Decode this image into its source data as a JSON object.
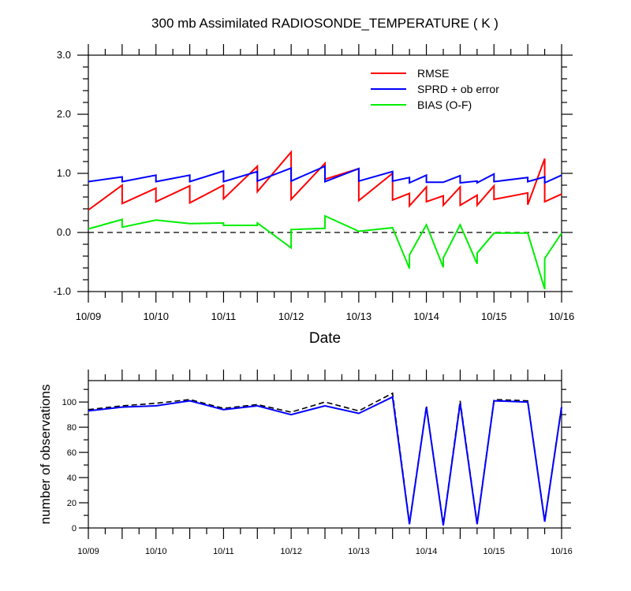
{
  "chart_data": [
    {
      "type": "line",
      "title": "300 mb Assimilated RADIOSONDE_TEMPERATURE ( K )",
      "xlabel": "Date",
      "ylabel": "",
      "xlim": [
        0,
        7
      ],
      "ylim": [
        -1.0,
        3.0
      ],
      "yticks": [
        "-1.0",
        "0.0",
        "1.0",
        "2.0",
        "3.0"
      ],
      "ytick_values": [
        -1,
        0,
        1,
        2,
        3
      ],
      "xticks": [
        "10/09",
        "10/10",
        "10/11",
        "10/12",
        "10/13",
        "10/14",
        "10/15",
        "10/16"
      ],
      "xtick_values": [
        0,
        1,
        2,
        3,
        4,
        5,
        6,
        7
      ],
      "zero_line": {
        "y": 0,
        "style": "dashed"
      },
      "legend": {
        "placement": "top-right"
      },
      "series": [
        {
          "name": "RMSE",
          "color": "#ff0000",
          "x": [
            0,
            0.5,
            0.5,
            1,
            1,
            1.5,
            1.5,
            2,
            2,
            2.5,
            2.5,
            3,
            3,
            3.5,
            3.5,
            4,
            4,
            4.5,
            4.5,
            4.75,
            4.75,
            5,
            5,
            5.25,
            5.25,
            5.5,
            5.5,
            5.75,
            5.75,
            6,
            6,
            6.5,
            6.5,
            6.75,
            6.75,
            7
          ],
          "y": [
            0.38,
            0.8,
            0.49,
            0.75,
            0.52,
            0.79,
            0.5,
            0.8,
            0.57,
            1.12,
            0.69,
            1.36,
            0.56,
            1.17,
            0.9,
            1.08,
            0.54,
            1.0,
            0.55,
            0.66,
            0.45,
            0.77,
            0.52,
            0.62,
            0.46,
            0.77,
            0.46,
            0.63,
            0.46,
            0.79,
            0.56,
            0.67,
            0.47,
            1.25,
            0.52,
            0.65
          ]
        },
        {
          "name": "SPRD + ob error",
          "color": "#0000ff",
          "x": [
            0,
            0.5,
            0.5,
            1,
            1,
            1.5,
            1.5,
            2,
            2,
            2.5,
            2.5,
            3,
            3,
            3.5,
            3.5,
            4,
            4,
            4.5,
            4.5,
            4.75,
            4.75,
            5,
            5,
            5.25,
            5.25,
            5.5,
            5.5,
            5.75,
            5.75,
            6,
            6,
            6.5,
            6.5,
            6.75,
            6.75,
            7
          ],
          "y": [
            0.86,
            0.94,
            0.86,
            0.97,
            0.86,
            0.97,
            0.86,
            1.04,
            0.86,
            1.03,
            0.87,
            1.09,
            0.87,
            1.12,
            0.86,
            1.08,
            0.87,
            1.03,
            0.87,
            0.93,
            0.84,
            0.97,
            0.85,
            0.85,
            0.85,
            0.96,
            0.84,
            0.87,
            0.84,
            0.99,
            0.86,
            0.93,
            0.86,
            0.94,
            0.84,
            0.97
          ]
        },
        {
          "name": "BIAS (O-F)",
          "color": "#00ee00",
          "x": [
            0,
            0.5,
            0.5,
            1,
            1.5,
            2,
            2,
            2.5,
            2.5,
            3,
            3,
            3.5,
            3.5,
            4,
            4.5,
            4.75,
            4.75,
            5,
            5.25,
            5.25,
            5.5,
            5.75,
            5.75,
            6,
            6.5,
            6.75,
            6.75,
            7
          ],
          "y": [
            0.06,
            0.22,
            0.09,
            0.21,
            0.15,
            0.16,
            0.12,
            0.12,
            0.16,
            -0.26,
            0.05,
            0.07,
            0.28,
            0.02,
            0.08,
            -0.61,
            -0.38,
            0.13,
            -0.59,
            -0.43,
            0.13,
            -0.53,
            -0.35,
            -0.01,
            -0.01,
            -0.96,
            -0.44,
            -0.01
          ]
        }
      ]
    },
    {
      "type": "line",
      "title": "",
      "xlabel": "",
      "ylabel": "number of observations",
      "xlim": [
        0,
        7
      ],
      "ylim": [
        0,
        117
      ],
      "yticks": [
        "0",
        "20",
        "40",
        "60",
        "80",
        "100"
      ],
      "ytick_values": [
        0,
        20,
        40,
        60,
        80,
        100
      ],
      "xticks": [
        "10/09",
        "10/10",
        "10/11",
        "10/12",
        "10/13",
        "10/14",
        "10/15",
        "10/16"
      ],
      "xtick_values": [
        0,
        1,
        2,
        3,
        4,
        5,
        6,
        7
      ],
      "series": [
        {
          "name": "dashed",
          "color": "#000000",
          "style": "dashed",
          "x": [
            0,
            0.5,
            1,
            1.5,
            2,
            2.5,
            3,
            3.5,
            4,
            4.5,
            4.75,
            5,
            5.25,
            5.5,
            5.75,
            6,
            6.5,
            6.75,
            7
          ],
          "y": [
            94,
            97,
            99,
            102,
            95,
            98,
            92,
            100,
            93,
            107,
            4,
            97,
            3,
            101,
            4,
            102,
            101,
            6,
            97
          ]
        },
        {
          "name": "solid",
          "color": "#0000ff",
          "style": "solid",
          "x": [
            0,
            0.5,
            1,
            1.5,
            2,
            2.5,
            3,
            3.5,
            4,
            4.5,
            4.75,
            5,
            5.25,
            5.5,
            5.75,
            6,
            6.5,
            6.75,
            7
          ],
          "y": [
            93,
            96,
            97,
            101,
            94,
            97,
            90,
            97,
            91,
            104,
            3,
            96,
            2,
            99,
            3,
            101,
            100,
            5,
            96
          ]
        }
      ]
    }
  ]
}
